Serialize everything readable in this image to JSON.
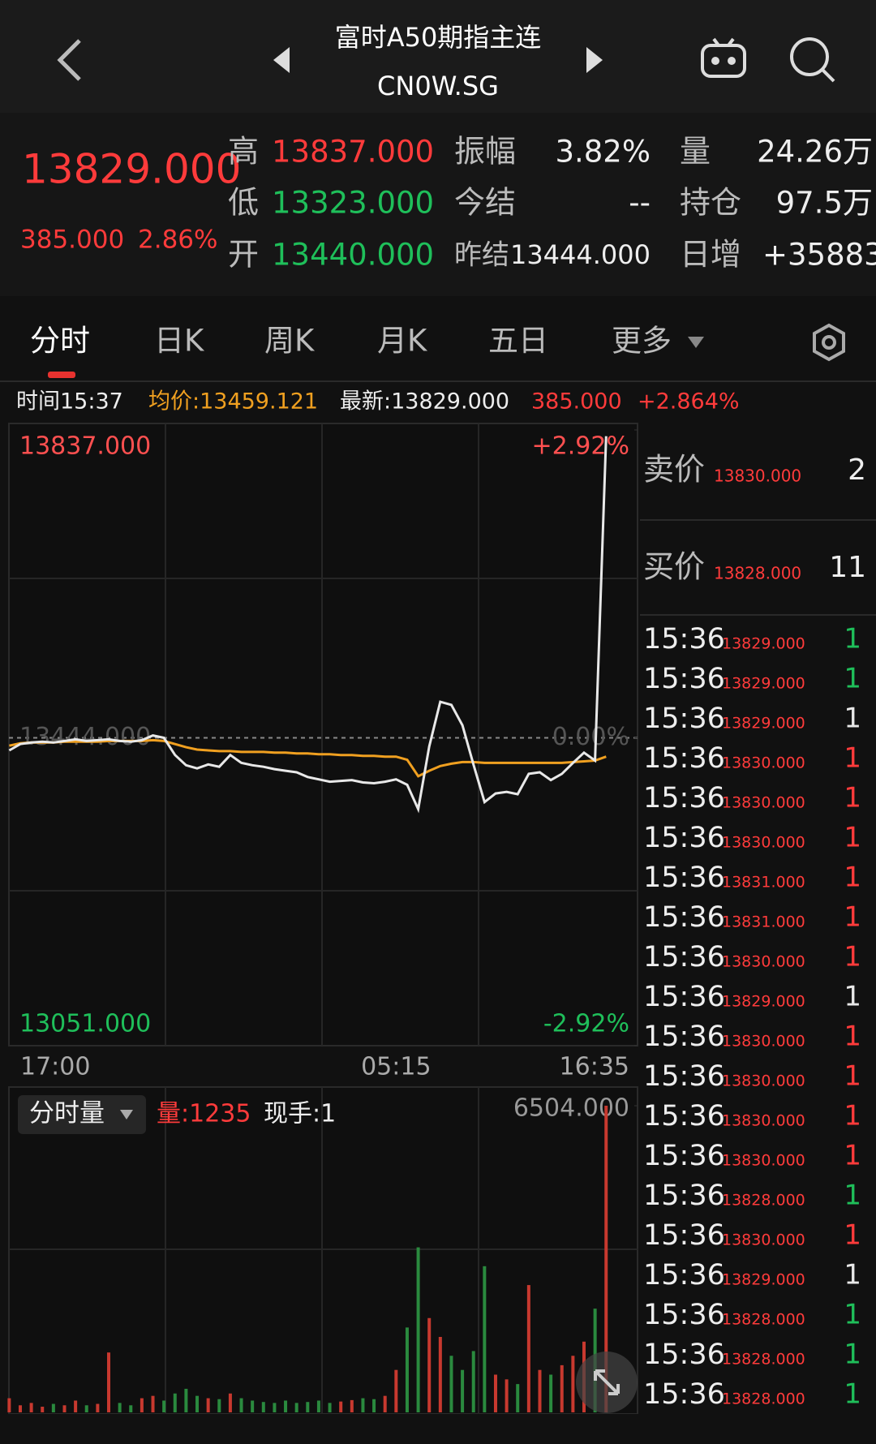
{
  "header": {
    "title": "富时A50期指主连",
    "subtitle": "CN0W.SG"
  },
  "quote": {
    "price": "13829.000",
    "change": "385.000",
    "change_pct": "2.86%",
    "high_label": "高",
    "high": "13837.000",
    "low_label": "低",
    "low": "13323.000",
    "open_label": "开",
    "open": "13440.000",
    "amp_label": "振幅",
    "amp": "3.82%",
    "settle_label": "今结",
    "settle": "--",
    "prev_label": "昨结",
    "prev": "13444.000",
    "vol_label": "量",
    "vol": "24.26万",
    "oi_label": "持仓",
    "oi": "97.5万",
    "daily_label": "日增",
    "daily": "+35883"
  },
  "tabs": [
    "分时",
    "日K",
    "周K",
    "月K",
    "五日",
    "更多"
  ],
  "info": {
    "time": "时间15:37",
    "avg": "均价:13459.121",
    "last": "最新:13829.000",
    "change": "385.000",
    "pct": "+2.864%"
  },
  "chart_data": [
    {
      "type": "line",
      "categories": [
        "17:00",
        null,
        null,
        null,
        null,
        null,
        null,
        null,
        null,
        null,
        null,
        null,
        null,
        null,
        null,
        null,
        null,
        null,
        null,
        null,
        null,
        null,
        null,
        null,
        null,
        null,
        null,
        null,
        null,
        null,
        null,
        null,
        null,
        null,
        null,
        "05:15",
        null,
        null,
        null,
        null,
        null,
        null,
        null,
        null,
        null,
        null,
        null,
        null,
        null,
        null,
        null,
        null,
        null,
        null,
        "16:35"
      ],
      "series": [
        {
          "color": "#e8e8e8",
          "values": [
            13428,
            13436,
            13438,
            13439,
            13438,
            13440,
            13442,
            13440,
            13441,
            13442,
            13440,
            13439,
            13441,
            13447,
            13444,
            13422,
            13409,
            13405,
            13410,
            13407,
            13422,
            13412,
            13409,
            13407,
            13404,
            13402,
            13400,
            13394,
            13391,
            13388,
            13389,
            13390,
            13387,
            13386,
            13388,
            13391,
            13384,
            13353,
            13433,
            13490,
            13486,
            13460,
            13410,
            13362,
            13373,
            13375,
            13372,
            13398,
            13400,
            13390,
            13398,
            13412,
            13425,
            13415,
            13829
          ]
        },
        {
          "color": "#f0a020",
          "values": [
            13434,
            13437,
            13438,
            13438,
            13438,
            13439,
            13439,
            13439,
            13439,
            13440,
            13440,
            13440,
            13440,
            13441,
            13440,
            13436,
            13432,
            13429,
            13428,
            13427,
            13427,
            13426,
            13426,
            13426,
            13425,
            13425,
            13424,
            13424,
            13423,
            13423,
            13422,
            13422,
            13421,
            13421,
            13420,
            13420,
            13416,
            13395,
            13402,
            13408,
            13411,
            13413,
            13413,
            13412,
            13412,
            13412,
            13412,
            13412,
            13412,
            13412,
            13412,
            13413,
            13414,
            13415,
            13420
          ]
        }
      ],
      "ylim": [
        13051,
        13837
      ],
      "yticks": [
        {
          "value": 13837,
          "label": "13837.000"
        },
        {
          "value": 13444,
          "label": "13444.000"
        },
        {
          "value": 13051,
          "label": "13051.000"
        }
      ],
      "y2lim": [
        -2.92,
        2.92
      ],
      "y2ticks": [
        {
          "value": 2.92,
          "label": "+2.92%"
        },
        {
          "value": 0,
          "label": "0.00%"
        },
        {
          "value": -2.92,
          "label": "-2.92%"
        }
      ]
    },
    {
      "type": "bar",
      "indicator": "分时量",
      "volume": "量:1235",
      "hand": "现手:1",
      "categories": [
        null,
        null,
        null,
        null,
        null,
        null,
        null,
        null,
        null,
        null,
        null,
        null,
        null,
        null,
        null,
        null,
        null,
        null,
        null,
        null,
        null,
        null,
        null,
        null,
        null,
        null,
        null,
        null,
        null,
        null,
        null,
        null,
        null,
        null,
        null,
        null,
        null,
        null,
        null,
        null,
        null,
        null,
        null,
        null,
        null,
        null,
        null,
        null,
        null,
        null,
        null,
        null,
        null,
        null,
        null
      ],
      "values": [
        300,
        150,
        200,
        120,
        180,
        150,
        250,
        150,
        180,
        1270,
        200,
        150,
        300,
        350,
        250,
        400,
        500,
        350,
        300,
        280,
        400,
        300,
        250,
        220,
        200,
        250,
        200,
        220,
        250,
        200,
        230,
        260,
        300,
        280,
        350,
        900,
        1800,
        3500,
        2000,
        1600,
        1200,
        900,
        1300,
        3100,
        800,
        700,
        600,
        2700,
        900,
        800,
        1000,
        1200,
        1500,
        2200,
        6504
      ],
      "up_color": "#c8392f",
      "down_color": "#2a8a3e",
      "ylim": [
        0,
        6504
      ],
      "yticks": [
        {
          "value": 6504,
          "label": "6504.000"
        }
      ]
    }
  ],
  "order_book": {
    "sell_label": "卖价",
    "sell_price": "13830.000",
    "sell_qty": "2",
    "buy_label": "买价",
    "buy_price": "13828.000",
    "buy_qty": "11"
  },
  "trades": [
    {
      "time": "15:36",
      "price": "13829.000",
      "qty": "1",
      "color": "#1fbf5a"
    },
    {
      "time": "15:36",
      "price": "13829.000",
      "qty": "1",
      "color": "#1fbf5a"
    },
    {
      "time": "15:36",
      "price": "13829.000",
      "qty": "1",
      "color": "#e8e8e8"
    },
    {
      "time": "15:36",
      "price": "13830.000",
      "qty": "1",
      "color": "#ff3b3b"
    },
    {
      "time": "15:36",
      "price": "13830.000",
      "qty": "1",
      "color": "#ff3b3b"
    },
    {
      "time": "15:36",
      "price": "13830.000",
      "qty": "1",
      "color": "#ff3b3b"
    },
    {
      "time": "15:36",
      "price": "13831.000",
      "qty": "1",
      "color": "#ff3b3b"
    },
    {
      "time": "15:36",
      "price": "13831.000",
      "qty": "1",
      "color": "#ff3b3b"
    },
    {
      "time": "15:36",
      "price": "13830.000",
      "qty": "1",
      "color": "#ff3b3b"
    },
    {
      "time": "15:36",
      "price": "13829.000",
      "qty": "1",
      "color": "#e8e8e8"
    },
    {
      "time": "15:36",
      "price": "13830.000",
      "qty": "1",
      "color": "#ff3b3b"
    },
    {
      "time": "15:36",
      "price": "13830.000",
      "qty": "1",
      "color": "#ff3b3b"
    },
    {
      "time": "15:36",
      "price": "13830.000",
      "qty": "1",
      "color": "#ff3b3b"
    },
    {
      "time": "15:36",
      "price": "13830.000",
      "qty": "1",
      "color": "#ff3b3b"
    },
    {
      "time": "15:36",
      "price": "13828.000",
      "qty": "1",
      "color": "#1fbf5a"
    },
    {
      "time": "15:36",
      "price": "13830.000",
      "qty": "1",
      "color": "#ff3b3b"
    },
    {
      "time": "15:36",
      "price": "13829.000",
      "qty": "1",
      "color": "#e8e8e8"
    },
    {
      "time": "15:36",
      "price": "13828.000",
      "qty": "1",
      "color": "#1fbf5a"
    },
    {
      "time": "15:36",
      "price": "13828.000",
      "qty": "1",
      "color": "#1fbf5a"
    },
    {
      "time": "15:36",
      "price": "13828.000",
      "qty": "1",
      "color": "#1fbf5a"
    }
  ]
}
